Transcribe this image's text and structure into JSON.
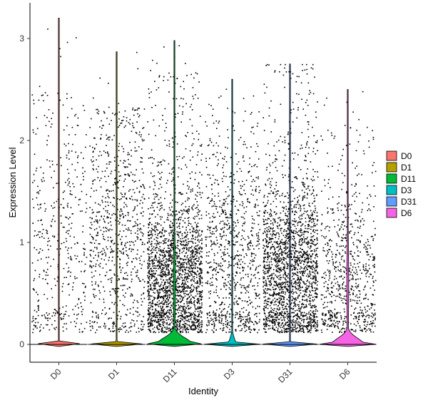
{
  "chart_data": {
    "type": "violin",
    "title": "",
    "xlabel": "Identity",
    "ylabel": "Expression Level",
    "ylim": [
      -0.15,
      3.35
    ],
    "yticks": [
      0,
      1,
      2,
      3
    ],
    "categories": [
      "D0",
      "D1",
      "D11",
      "D3",
      "D31",
      "D6"
    ],
    "series": [
      {
        "name": "D0",
        "color": "#F8766D",
        "max": 3.2,
        "n_expressed": 450,
        "density_at_zero": 0.02,
        "bulk_mean": 1.0,
        "bulk_sd": 0.75,
        "jitter_max": 2.5
      },
      {
        "name": "D1",
        "color": "#B79F00",
        "max": 2.87,
        "n_expressed": 800,
        "density_at_zero": 0.02,
        "bulk_mean": 1.1,
        "bulk_sd": 0.7,
        "jitter_max": 2.35
      },
      {
        "name": "D11",
        "color": "#00BA38",
        "max": 2.98,
        "n_expressed": 2200,
        "density_at_zero": 0.62,
        "bulk_mean": 0.65,
        "bulk_sd": 0.4,
        "jitter_max": 2.7
      },
      {
        "name": "D3",
        "color": "#00BFC4",
        "max": 2.6,
        "n_expressed": 900,
        "density_at_zero": 0.12,
        "bulk_mean": 0.8,
        "bulk_sd": 0.6,
        "jitter_max": 2.35
      },
      {
        "name": "D31",
        "color": "#619CFF",
        "max": 2.75,
        "n_expressed": 2100,
        "density_at_zero": 0.02,
        "bulk_mean": 0.7,
        "bulk_sd": 0.45,
        "jitter_max": 2.75
      },
      {
        "name": "D6",
        "color": "#F564E3",
        "max": 2.5,
        "n_expressed": 750,
        "density_at_zero": 0.55,
        "bulk_mean": 0.65,
        "bulk_sd": 0.5,
        "jitter_max": 2.2
      }
    ],
    "legend": {
      "position": "right",
      "entries": [
        "D0",
        "D1",
        "D11",
        "D3",
        "D31",
        "D6"
      ]
    },
    "grid": false
  }
}
